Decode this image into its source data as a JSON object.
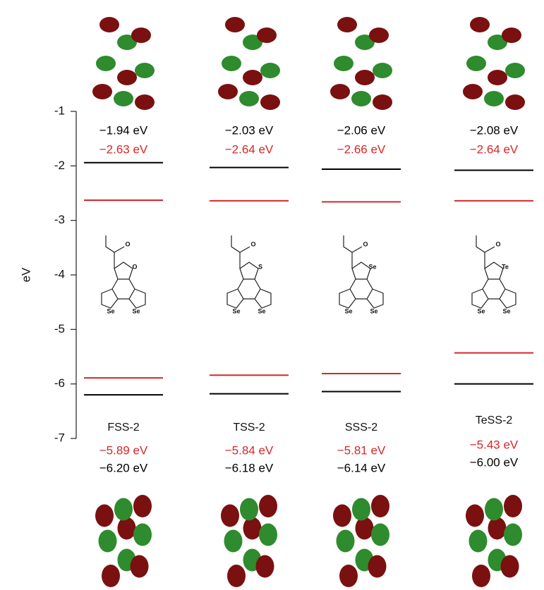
{
  "chart_data": {
    "type": "energy-level",
    "y_label": "eV",
    "categories": [
      "FSS-2",
      "TSS-2",
      "SSS-2",
      "TeSS-2"
    ],
    "ylim": [
      -7,
      -1
    ],
    "yticks": [
      -7,
      -6,
      -5,
      -4,
      -3,
      -2,
      -1
    ],
    "series": [
      {
        "color": "#000000",
        "values": [
          -1.94,
          -2.03,
          -2.06,
          -2.08
        ],
        "value_labels": [
          "−1.94 eV",
          "−2.03 eV",
          "−2.06 eV",
          "−2.08 eV"
        ]
      },
      {
        "color": "#d62728",
        "values": [
          -2.63,
          -2.64,
          -2.66,
          -2.64
        ],
        "value_labels": [
          "−2.63 eV",
          "−2.64 eV",
          "−2.66 eV",
          "−2.64 eV"
        ]
      },
      {
        "color": "#d62728",
        "values": [
          -5.89,
          -5.84,
          -5.81,
          -5.43
        ],
        "value_labels": [
          "−5.89 eV",
          "−5.84 eV",
          "−5.81 eV",
          "−5.43 eV"
        ]
      },
      {
        "color": "#000000",
        "values": [
          -6.2,
          -6.18,
          -6.14,
          -6.0
        ],
        "value_labels": [
          "−6.20 eV",
          "−6.18 eV",
          "−6.14 eV",
          "−6.00 eV"
        ]
      }
    ]
  },
  "structures": [
    {
      "ring": "O",
      "carbonyl": "O",
      "left": "Se",
      "right": "Se"
    },
    {
      "ring": "S",
      "carbonyl": "O",
      "left": "Se",
      "right": "Se"
    },
    {
      "ring": "Se",
      "carbonyl": "O",
      "left": "Se",
      "right": "Se"
    },
    {
      "ring": "Te",
      "carbonyl": "O",
      "left": "Se",
      "right": "Se"
    }
  ]
}
